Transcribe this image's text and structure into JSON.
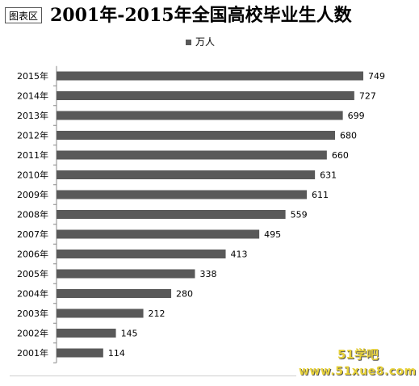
{
  "chart_area_label": "图表区",
  "chart_data": {
    "type": "bar",
    "orientation": "horizontal",
    "title": "2001年-2015年全国高校毕业生人数",
    "categories": [
      "2015年",
      "2014年",
      "2013年",
      "2012年",
      "2011年",
      "2010年",
      "2009年",
      "2008年",
      "2007年",
      "2006年",
      "2005年",
      "2004年",
      "2003年",
      "2002年",
      "2001年"
    ],
    "series": [
      {
        "name": "万人",
        "values": [
          749,
          727,
          699,
          680,
          660,
          631,
          611,
          559,
          495,
          413,
          338,
          280,
          212,
          145,
          114
        ],
        "color": "#595959"
      }
    ],
    "xlim": [
      0,
      749
    ],
    "grid": false,
    "legend_position": "top",
    "data_labels": true
  },
  "watermark": {
    "line1": "51学吧",
    "line2": "www.51xue8.com"
  }
}
